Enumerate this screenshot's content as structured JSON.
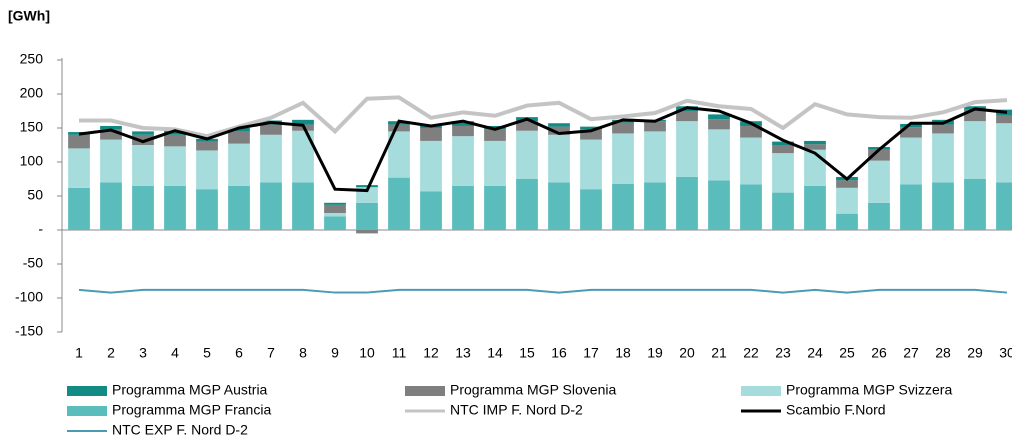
{
  "chart_data": {
    "type": "bar",
    "y_label": "[GWh]",
    "categories": [
      "1",
      "2",
      "3",
      "4",
      "5",
      "6",
      "7",
      "8",
      "9",
      "10",
      "11",
      "12",
      "13",
      "14",
      "15",
      "16",
      "17",
      "18",
      "19",
      "20",
      "21",
      "22",
      "23",
      "24",
      "25",
      "26",
      "27",
      "28",
      "29",
      "30"
    ],
    "series": [
      {
        "name": "Programma MGP Austria",
        "type": "bar",
        "color": "#138a84",
        "values": [
          4,
          5,
          5,
          6,
          4,
          5,
          6,
          7,
          3,
          3,
          5,
          5,
          7,
          5,
          6,
          5,
          4,
          4,
          2,
          7,
          7,
          7,
          5,
          5,
          5,
          4,
          5,
          7,
          5,
          9
        ]
      },
      {
        "name": "Programma MGP Slovenia",
        "type": "bar",
        "color": "#7f7f7f",
        "values": [
          20,
          15,
          15,
          17,
          13,
          18,
          15,
          9,
          12,
          -5,
          10,
          19,
          15,
          17,
          14,
          12,
          15,
          16,
          15,
          15,
          15,
          17,
          12,
          8,
          11,
          16,
          15,
          13,
          17,
          11
        ]
      },
      {
        "name": "Programma MGP Svizzera",
        "type": "bar",
        "color": "#a6dcdc",
        "values": [
          58,
          63,
          60,
          58,
          57,
          62,
          70,
          76,
          5,
          23,
          68,
          74,
          73,
          66,
          71,
          70,
          73,
          74,
          75,
          82,
          75,
          69,
          58,
          53,
          38,
          62,
          69,
          72,
          85,
          87
        ]
      },
      {
        "name": "Programma MGP Francia",
        "type": "bar",
        "color": "#5bbcbc",
        "values": [
          62,
          70,
          65,
          65,
          60,
          65,
          70,
          70,
          20,
          40,
          77,
          57,
          65,
          65,
          75,
          70,
          60,
          68,
          70,
          78,
          73,
          67,
          55,
          65,
          24,
          40,
          67,
          70,
          75,
          70
        ]
      },
      {
        "name": "NTC  IMP F. Nord D-2",
        "type": "line",
        "color": "#c4c4c4",
        "values": [
          161,
          161,
          150,
          148,
          138,
          152,
          165,
          187,
          145,
          193,
          195,
          165,
          173,
          168,
          183,
          187,
          163,
          167,
          172,
          190,
          182,
          178,
          150,
          185,
          170,
          166,
          165,
          173,
          188,
          191
        ]
      },
      {
        "name": "Scambio F.Nord",
        "type": "line",
        "color": "#000000",
        "values": [
          141,
          147,
          130,
          146,
          134,
          150,
          158,
          154,
          60,
          58,
          160,
          153,
          160,
          148,
          163,
          142,
          146,
          162,
          160,
          180,
          175,
          157,
          132,
          113,
          75,
          118,
          157,
          157,
          178,
          173
        ]
      },
      {
        "name": "NTC  EXP F. Nord D-2",
        "type": "line",
        "color": "#4a9cb4",
        "values": [
          -88,
          -92,
          -88,
          -88,
          -88,
          -88,
          -88,
          -88,
          -92,
          -92,
          -88,
          -88,
          -88,
          -88,
          -88,
          -92,
          -88,
          -88,
          -88,
          -88,
          -88,
          -88,
          -92,
          -88,
          -92,
          -88,
          -88,
          -88,
          -88,
          -92
        ]
      }
    ],
    "ylim": [
      -150,
      250
    ],
    "yticks": [
      -150,
      -100,
      -50,
      {
        "value": 0,
        "label": "-"
      },
      50,
      100,
      150,
      200,
      250
    ]
  }
}
